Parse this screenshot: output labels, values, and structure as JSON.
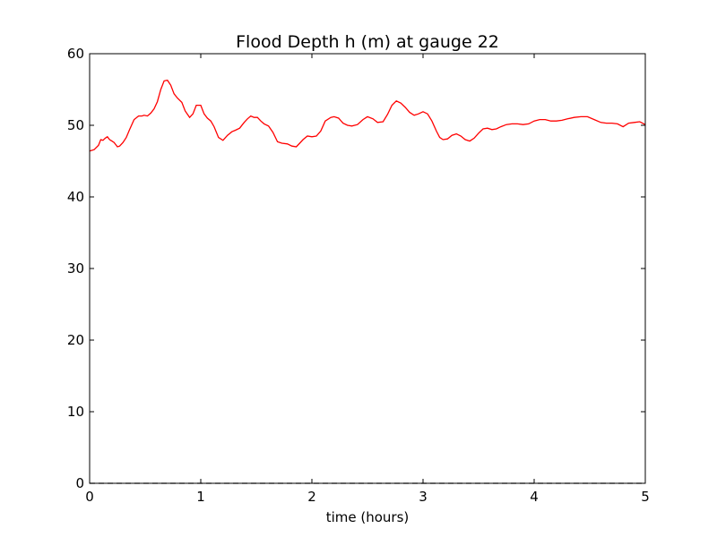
{
  "chart_data": {
    "type": "line",
    "title": "Flood Depth h (m) at gauge 22",
    "xlabel": "time (hours)",
    "ylabel": "",
    "xlim": [
      0,
      5
    ],
    "ylim": [
      0,
      60
    ],
    "xticks": [
      "0",
      "1",
      "2",
      "3",
      "4",
      "5"
    ],
    "yticks": [
      "0",
      "10",
      "20",
      "30",
      "40",
      "50",
      "60"
    ],
    "grid": false,
    "legend": "none",
    "series": [
      {
        "color": "#ff0000",
        "style": "solid",
        "x": [
          0.0,
          0.04,
          0.08,
          0.1,
          0.12,
          0.14,
          0.16,
          0.18,
          0.2,
          0.22,
          0.25,
          0.27,
          0.3,
          0.33,
          0.36,
          0.4,
          0.44,
          0.47,
          0.49,
          0.52,
          0.55,
          0.58,
          0.61,
          0.64,
          0.67,
          0.7,
          0.73,
          0.76,
          0.79,
          0.83,
          0.86,
          0.9,
          0.93,
          0.96,
          1.0,
          1.03,
          1.06,
          1.09,
          1.12,
          1.16,
          1.2,
          1.24,
          1.28,
          1.31,
          1.35,
          1.39,
          1.42,
          1.45,
          1.48,
          1.51,
          1.54,
          1.57,
          1.61,
          1.65,
          1.69,
          1.73,
          1.78,
          1.82,
          1.86,
          1.89,
          1.92,
          1.96,
          2.0,
          2.04,
          2.08,
          2.12,
          2.17,
          2.2,
          2.24,
          2.28,
          2.32,
          2.36,
          2.41,
          2.46,
          2.5,
          2.55,
          2.59,
          2.64,
          2.68,
          2.72,
          2.76,
          2.8,
          2.84,
          2.88,
          2.92,
          2.96,
          3.0,
          3.04,
          3.08,
          3.12,
          3.15,
          3.18,
          3.22,
          3.26,
          3.3,
          3.34,
          3.38,
          3.42,
          3.46,
          3.5,
          3.54,
          3.58,
          3.62,
          3.66,
          3.7,
          3.75,
          3.8,
          3.85,
          3.9,
          3.95,
          4.0,
          4.05,
          4.1,
          4.15,
          4.2,
          4.25,
          4.3,
          4.36,
          4.42,
          4.48,
          4.54,
          4.6,
          4.65,
          4.7,
          4.75,
          4.8,
          4.85,
          4.9,
          4.95,
          5.0
        ],
        "y": [
          46.4,
          46.6,
          47.2,
          48.0,
          47.9,
          48.2,
          48.4,
          48.0,
          47.8,
          47.6,
          47.0,
          47.1,
          47.6,
          48.3,
          49.4,
          50.8,
          51.3,
          51.3,
          51.4,
          51.3,
          51.7,
          52.3,
          53.3,
          55.0,
          56.2,
          56.3,
          55.6,
          54.4,
          53.8,
          53.2,
          52.0,
          51.1,
          51.6,
          52.8,
          52.8,
          51.6,
          51.0,
          50.6,
          49.8,
          48.3,
          47.9,
          48.6,
          49.1,
          49.3,
          49.6,
          50.4,
          50.9,
          51.3,
          51.1,
          51.1,
          50.6,
          50.2,
          49.9,
          49.0,
          47.7,
          47.5,
          47.4,
          47.1,
          47.0,
          47.5,
          48.0,
          48.5,
          48.4,
          48.5,
          49.2,
          50.6,
          51.1,
          51.2,
          51.0,
          50.3,
          50.0,
          49.9,
          50.1,
          50.8,
          51.2,
          50.9,
          50.4,
          50.5,
          51.5,
          52.8,
          53.4,
          53.1,
          52.5,
          51.8,
          51.4,
          51.6,
          51.9,
          51.6,
          50.6,
          49.2,
          48.3,
          48.0,
          48.1,
          48.6,
          48.8,
          48.5,
          48.0,
          47.8,
          48.2,
          48.9,
          49.5,
          49.6,
          49.4,
          49.5,
          49.8,
          50.1,
          50.2,
          50.2,
          50.1,
          50.2,
          50.6,
          50.8,
          50.8,
          50.6,
          50.6,
          50.7,
          50.9,
          51.1,
          51.2,
          51.2,
          50.8,
          50.4,
          50.3,
          50.3,
          50.2,
          49.8,
          50.3,
          50.4,
          50.5,
          50.1
        ]
      },
      {
        "color": "#000000",
        "style": "dashed",
        "x": [
          0,
          5
        ],
        "y": [
          0,
          0
        ]
      }
    ]
  }
}
